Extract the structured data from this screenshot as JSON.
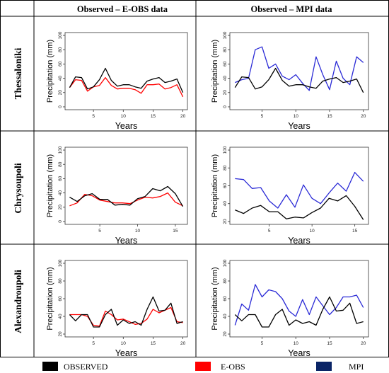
{
  "columns": [
    "Observed – E-OBS data",
    "Observed – MPI data"
  ],
  "rows": [
    "Thessaloniki",
    "Chrysoupoli",
    "Alexandroupoli"
  ],
  "legend": [
    {
      "label": "OBSERVED",
      "color": "#000000"
    },
    {
      "label": "E-OBS",
      "color": "#ff0000"
    },
    {
      "label": "MPI",
      "color": "#0a2466"
    }
  ],
  "colors": {
    "observed": "#000000",
    "eobs": "#ff0000",
    "mpi": "#2b2bd6",
    "grid": "#000000"
  },
  "chart_data": [
    {
      "type": "line",
      "panel": "Thessaloniki / E-OBS",
      "xlabel": "Years",
      "ylabel": "Precipitation (mm)",
      "ylim": [
        0,
        100
      ],
      "yticks": [
        0,
        20,
        40,
        60,
        80,
        100
      ],
      "xlim": [
        1,
        20
      ],
      "xticks": [
        5,
        10,
        15,
        20
      ],
      "series": [
        {
          "name": "OBSERVED",
          "x": [
            1,
            2,
            3,
            4,
            5,
            6,
            7,
            8,
            9,
            10,
            11,
            12,
            13,
            14,
            15,
            16,
            17,
            18,
            19,
            20
          ],
          "values": [
            27,
            42,
            41,
            25,
            28,
            38,
            54,
            37,
            29,
            31,
            31,
            28,
            26,
            36,
            39,
            41,
            34,
            36,
            39,
            20
          ]
        },
        {
          "name": "E-OBS",
          "x": [
            1,
            2,
            3,
            4,
            5,
            6,
            7,
            8,
            9,
            10,
            11,
            12,
            13,
            14,
            15,
            16,
            17,
            18,
            19,
            20
          ],
          "values": [
            27,
            38,
            37,
            22,
            28,
            30,
            41,
            30,
            25,
            26,
            26,
            24,
            19,
            31,
            31,
            32,
            25,
            27,
            31,
            14
          ]
        }
      ]
    },
    {
      "type": "line",
      "panel": "Thessaloniki / MPI",
      "xlabel": "Years",
      "ylabel": "Precipitation (mm)",
      "ylim": [
        0,
        100
      ],
      "yticks": [
        0,
        20,
        40,
        60,
        80,
        100
      ],
      "xlim": [
        1,
        20
      ],
      "xticks": [
        5,
        10,
        15,
        20
      ],
      "series": [
        {
          "name": "OBSERVED",
          "x": [
            1,
            2,
            3,
            4,
            5,
            6,
            7,
            8,
            9,
            10,
            11,
            12,
            13,
            14,
            15,
            16,
            17,
            18,
            19,
            20
          ],
          "values": [
            27,
            42,
            41,
            25,
            28,
            38,
            54,
            37,
            29,
            31,
            31,
            28,
            26,
            36,
            39,
            41,
            34,
            36,
            39,
            20
          ]
        },
        {
          "name": "MPI",
          "x": [
            1,
            2,
            3,
            4,
            5,
            6,
            7,
            8,
            9,
            10,
            11,
            12,
            13,
            14,
            15,
            16,
            17,
            18,
            19,
            20
          ],
          "values": [
            34,
            38,
            40,
            80,
            84,
            54,
            60,
            43,
            38,
            45,
            33,
            23,
            70,
            45,
            24,
            64,
            40,
            31,
            70,
            62
          ]
        }
      ]
    },
    {
      "type": "line",
      "panel": "Chrysoupoli / E-OBS",
      "xlabel": "Years",
      "ylabel": "Precipitation (mm)",
      "ylim": [
        0,
        100
      ],
      "yticks": [
        0,
        20,
        40,
        60,
        80,
        100
      ],
      "xlim": [
        1,
        16
      ],
      "xticks": [
        5,
        10,
        15
      ],
      "series": [
        {
          "name": "OBSERVED",
          "x": [
            1,
            2,
            3,
            4,
            5,
            6,
            7,
            8,
            9,
            10,
            11,
            12,
            13,
            14,
            15,
            16
          ],
          "values": [
            34,
            28,
            36,
            39,
            31,
            31,
            23,
            24,
            23,
            32,
            35,
            46,
            43,
            49,
            39,
            21
          ]
        },
        {
          "name": "E-OBS",
          "x": [
            1,
            2,
            3,
            4,
            5,
            6,
            7,
            8,
            9,
            10,
            11,
            12,
            13,
            14,
            15,
            16
          ],
          "values": [
            22,
            26,
            38,
            36,
            30,
            28,
            26,
            26,
            25,
            30,
            34,
            33,
            35,
            40,
            27,
            22
          ]
        }
      ]
    },
    {
      "type": "line",
      "panel": "Chrysoupoli / MPI",
      "xlabel": "Years",
      "ylabel": "Precipitation (mm)",
      "ylim": [
        20,
        100
      ],
      "yticks": [
        20,
        40,
        60,
        80,
        100
      ],
      "xlim": [
        1,
        16
      ],
      "xticks": [
        5,
        10,
        15
      ],
      "series": [
        {
          "name": "OBSERVED",
          "x": [
            1,
            2,
            3,
            4,
            5,
            6,
            7,
            8,
            9,
            10,
            11,
            12,
            13,
            14,
            15,
            16
          ],
          "values": [
            33,
            29,
            35,
            38,
            31,
            31,
            23,
            25,
            24,
            30,
            35,
            46,
            43,
            49,
            37,
            22
          ]
        },
        {
          "name": "MPI",
          "x": [
            1,
            2,
            3,
            4,
            5,
            6,
            7,
            8,
            9,
            10,
            11,
            12,
            13,
            14,
            15,
            16
          ],
          "values": [
            68,
            67,
            57,
            58,
            43,
            35,
            50,
            36,
            61,
            46,
            40,
            52,
            63,
            54,
            75,
            65
          ]
        }
      ]
    },
    {
      "type": "line",
      "panel": "Alexandroupoli / E-OBS",
      "xlabel": "Years",
      "ylabel": "Precipitation (mm)",
      "ylim": [
        20,
        100
      ],
      "yticks": [
        20,
        40,
        60,
        80,
        100
      ],
      "xlim": [
        1,
        20
      ],
      "xticks": [
        5,
        10,
        15,
        20
      ],
      "series": [
        {
          "name": "OBSERVED",
          "x": [
            1,
            2,
            3,
            4,
            5,
            6,
            7,
            8,
            9,
            10,
            11,
            12,
            13,
            14,
            15,
            16,
            17,
            18,
            19,
            20
          ],
          "values": [
            42,
            35,
            42,
            42,
            28,
            28,
            42,
            48,
            30,
            36,
            32,
            34,
            30,
            48,
            62,
            46,
            47,
            55,
            32,
            34
          ]
        },
        {
          "name": "E-OBS",
          "x": [
            1,
            2,
            3,
            4,
            5,
            6,
            7,
            8,
            9,
            10,
            11,
            12,
            13,
            14,
            15,
            16,
            17,
            18,
            19,
            20
          ],
          "values": [
            42,
            42,
            42,
            40,
            30,
            29,
            46,
            42,
            36,
            37,
            34,
            31,
            32,
            37,
            48,
            44,
            47,
            50,
            34,
            33
          ]
        }
      ]
    },
    {
      "type": "line",
      "panel": "Alexandroupoli / MPI",
      "xlabel": "Years",
      "ylabel": "Precipitation (mm)",
      "ylim": [
        20,
        100
      ],
      "yticks": [
        20,
        40,
        60,
        80,
        100
      ],
      "xlim": [
        1,
        20
      ],
      "xticks": [
        5,
        10,
        15,
        20
      ],
      "series": [
        {
          "name": "OBSERVED",
          "x": [
            1,
            2,
            3,
            4,
            5,
            6,
            7,
            8,
            9,
            10,
            11,
            12,
            13,
            14,
            15,
            16,
            17,
            18,
            19,
            20
          ],
          "values": [
            42,
            35,
            42,
            42,
            28,
            28,
            42,
            48,
            30,
            36,
            32,
            34,
            30,
            48,
            62,
            46,
            47,
            55,
            32,
            34
          ]
        },
        {
          "name": "MPI",
          "x": [
            1,
            2,
            3,
            4,
            5,
            6,
            7,
            8,
            9,
            10,
            11,
            12,
            13,
            14,
            15,
            16,
            17,
            18,
            19,
            20
          ],
          "values": [
            30,
            54,
            47,
            76,
            62,
            70,
            68,
            60,
            46,
            40,
            59,
            42,
            62,
            52,
            42,
            50,
            62,
            62,
            64,
            50
          ]
        }
      ]
    }
  ]
}
